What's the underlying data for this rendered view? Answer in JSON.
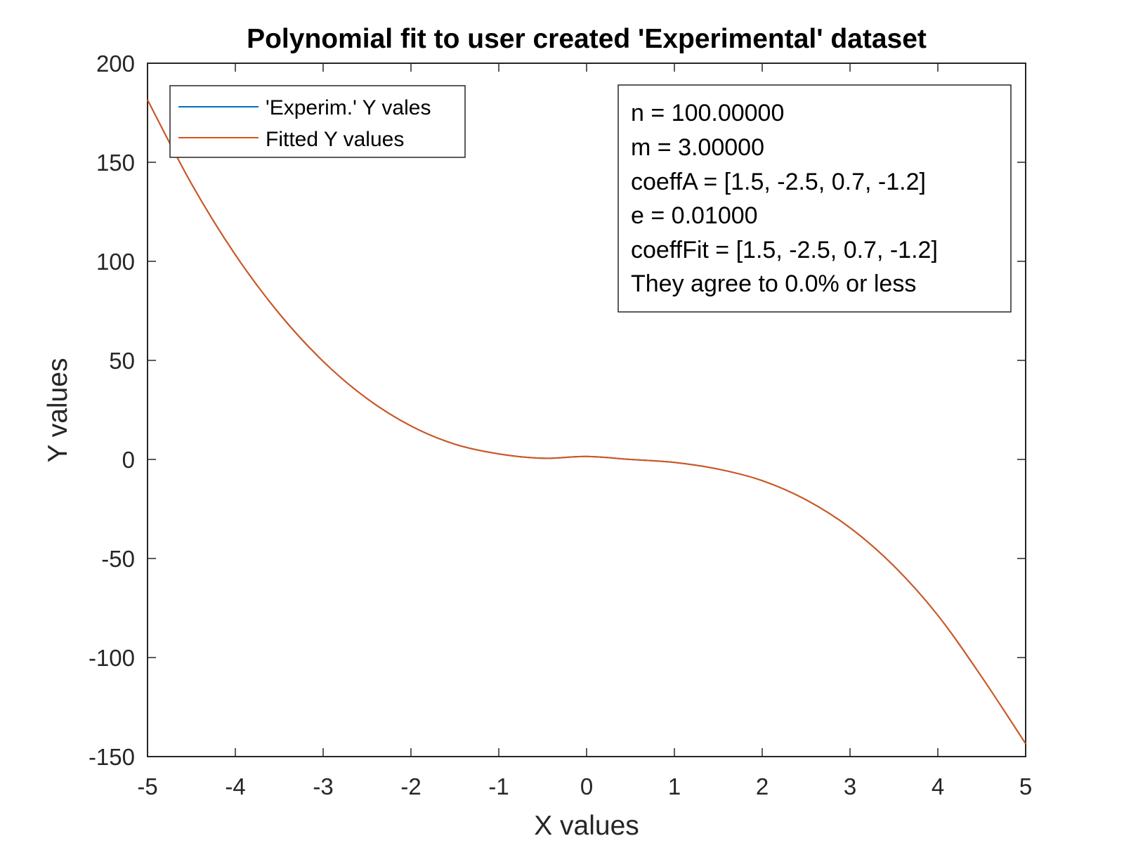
{
  "chart_data": {
    "type": "line",
    "title": "Polynomial fit to user created 'Experimental' dataset",
    "xlabel": "X values",
    "ylabel": "Y values",
    "xlim": [
      -5,
      5
    ],
    "ylim": [
      -150,
      200
    ],
    "xticks": [
      -5,
      -4,
      -3,
      -2,
      -1,
      0,
      1,
      2,
      3,
      4,
      5
    ],
    "yticks": [
      -150,
      -100,
      -50,
      0,
      50,
      100,
      150,
      200
    ],
    "grid": false,
    "legend_position": "top-left",
    "series": [
      {
        "name": "'Experim.' Y vales",
        "color": "#0072bd",
        "x": [
          -5,
          -4.5,
          -4,
          -3.5,
          -3,
          -2.5,
          -2,
          -1.5,
          -1,
          -0.5,
          0,
          0.5,
          1,
          1.5,
          2,
          2.5,
          3,
          3.5,
          4,
          4.5,
          5
        ],
        "y": [
          181.5,
          139.2,
          103.3,
          73.6,
          49.5,
          30.7,
          16.9,
          7.7,
          2.8,
          0.6,
          1.5,
          0.0,
          -1.5,
          -4.9,
          -10.7,
          -20.4,
          -34.5,
          -53.8,
          -78.7,
          -109.8,
          -143.5
        ]
      },
      {
        "name": "Fitted Y values",
        "color": "#d95319",
        "x": [
          -5,
          -4.5,
          -4,
          -3.5,
          -3,
          -2.5,
          -2,
          -1.5,
          -1,
          -0.5,
          0,
          0.5,
          1,
          1.5,
          2,
          2.5,
          3,
          3.5,
          4,
          4.5,
          5
        ],
        "y": [
          181.5,
          139.2,
          103.3,
          73.6,
          49.5,
          30.7,
          16.9,
          7.7,
          2.8,
          0.6,
          1.5,
          0.0,
          -1.5,
          -4.9,
          -10.7,
          -20.4,
          -34.5,
          -53.8,
          -78.7,
          -109.8,
          -143.5
        ]
      }
    ],
    "annotation": [
      "n = 100.00000",
      "m = 3.00000",
      "coeffA = [1.5, -2.5, 0.7, -1.2]",
      "e = 0.01000",
      "coeffFit = [1.5, -2.5, 0.7, -1.2]",
      "They agree to 0.0% or less"
    ]
  }
}
